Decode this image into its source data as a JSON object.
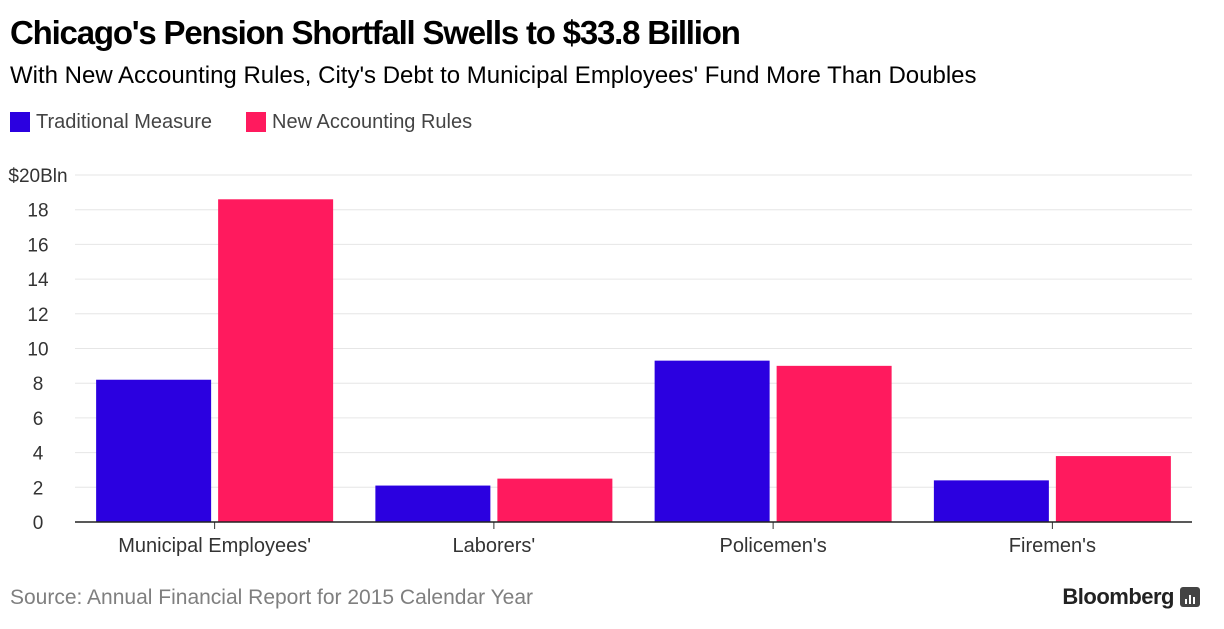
{
  "header": {
    "title": "Chicago's Pension Shortfall Swells to $33.8 Billion",
    "subtitle": "With New Accounting Rules, City's Debt to Municipal Employees' Fund More Than Doubles"
  },
  "legend": [
    {
      "label": "Traditional Measure",
      "color": "#2b00e0"
    },
    {
      "label": "New Accounting Rules",
      "color": "#ff1a5e"
    }
  ],
  "chart_data": {
    "type": "bar",
    "categories": [
      "Municipal Employees'",
      "Laborers'",
      "Policemen's",
      "Firemen's"
    ],
    "series": [
      {
        "name": "Traditional Measure",
        "color": "#2b00e0",
        "values": [
          8.2,
          2.1,
          9.3,
          2.4
        ]
      },
      {
        "name": "New Accounting Rules",
        "color": "#ff1a5e",
        "values": [
          18.6,
          2.5,
          9.0,
          3.8
        ]
      }
    ],
    "ylim": [
      0,
      20
    ],
    "yticks": [
      0,
      2,
      4,
      6,
      8,
      10,
      12,
      14,
      16,
      18,
      20
    ],
    "ytick_labels": [
      "0",
      "2",
      "4",
      "6",
      "8",
      "10",
      "12",
      "14",
      "16",
      "18",
      "$20Bln"
    ],
    "grid": true,
    "legend_position": "top-left"
  },
  "footer": {
    "source": "Source: Annual Financial Report for 2015 Calendar Year",
    "brand": "Bloomberg"
  }
}
